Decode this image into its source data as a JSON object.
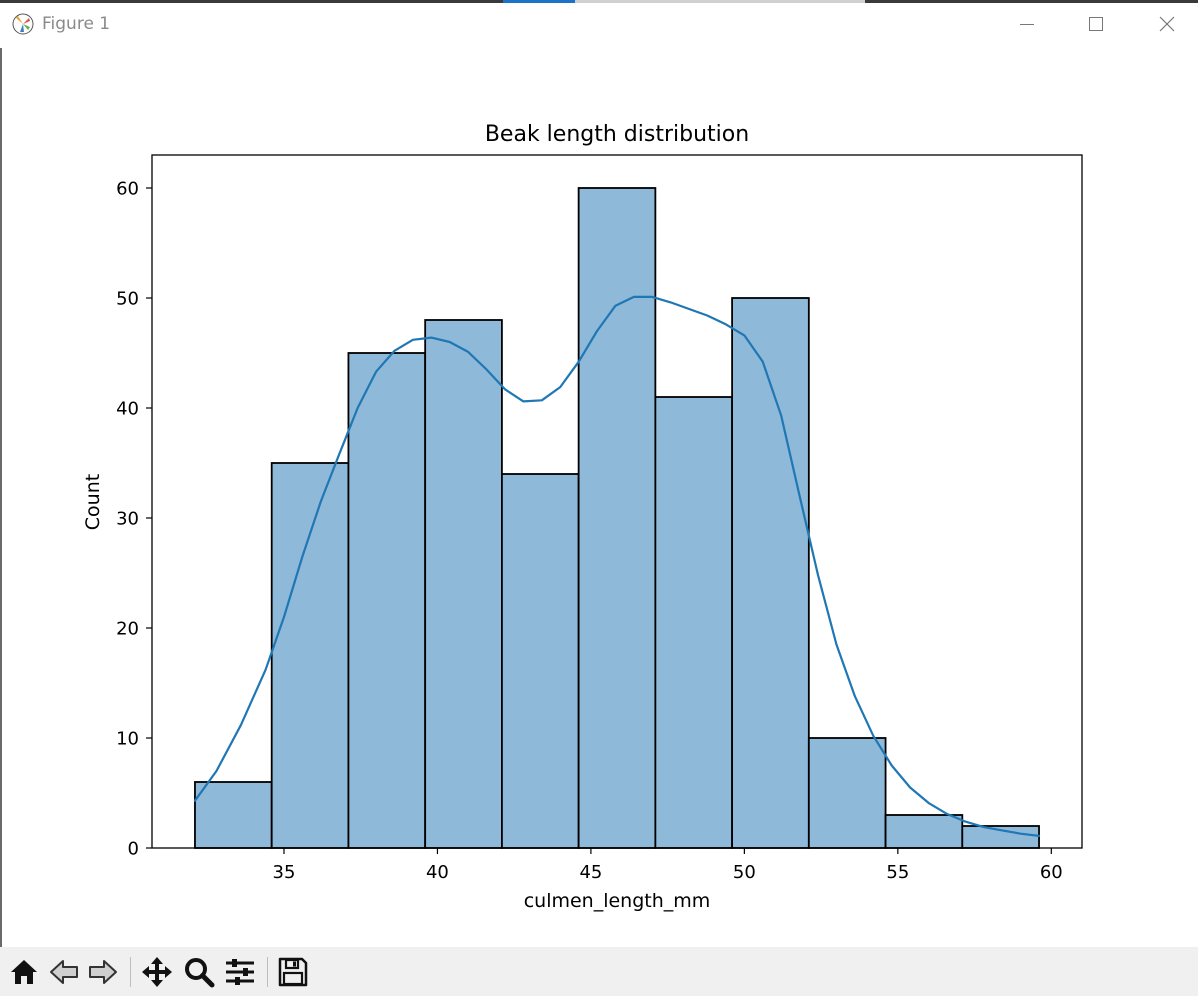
{
  "window": {
    "title": "Figure 1"
  },
  "toolbar": {
    "buttons": [
      {
        "name": "home-button",
        "icon": "home-icon"
      },
      {
        "name": "back-button",
        "icon": "back-arrow-icon"
      },
      {
        "name": "forward-button",
        "icon": "forward-arrow-icon"
      },
      {
        "name": "pan-button",
        "icon": "move-icon"
      },
      {
        "name": "zoom-button",
        "icon": "magnifier-icon"
      },
      {
        "name": "configure-subplots-button",
        "icon": "sliders-icon"
      },
      {
        "name": "save-button",
        "icon": "floppy-disk-icon"
      }
    ]
  },
  "colors": {
    "bar_fill": "#8fb9d9",
    "bar_edge": "#000000",
    "kde_line": "#1f77b4"
  },
  "chart_data": {
    "type": "bar",
    "title": "Beak length distribution",
    "xlabel": "culmen_length_mm",
    "ylabel": "Count",
    "xlim": [
      30.7,
      61
    ],
    "ylim": [
      0,
      63
    ],
    "x_ticks": [
      35,
      40,
      45,
      50,
      55,
      60
    ],
    "x_tick_labels": [
      "35",
      "40",
      "45",
      "50",
      "55",
      "60"
    ],
    "y_ticks": [
      0,
      10,
      20,
      30,
      40,
      50,
      60
    ],
    "y_tick_labels": [
      "0",
      "10",
      "20",
      "30",
      "40",
      "50",
      "60"
    ],
    "bin_edges": [
      32.1,
      34.6,
      37.1,
      39.6,
      42.1,
      44.6,
      47.1,
      49.6,
      52.1,
      54.6,
      57.1,
      59.6
    ],
    "values": [
      6,
      35,
      45,
      48,
      34,
      60,
      41,
      50,
      10,
      3,
      2
    ],
    "kde": {
      "x": [
        32.1,
        32.8,
        33.6,
        34.4,
        35.0,
        35.6,
        36.2,
        36.8,
        37.4,
        38.0,
        38.6,
        39.2,
        39.8,
        40.4,
        41.0,
        41.6,
        42.2,
        42.8,
        43.4,
        44.0,
        44.6,
        45.2,
        45.8,
        46.4,
        47.0,
        47.6,
        48.2,
        48.8,
        49.4,
        50.0,
        50.6,
        51.2,
        51.8,
        52.4,
        53.0,
        53.6,
        54.2,
        54.8,
        55.4,
        56.0,
        56.6,
        57.2,
        57.8,
        58.4,
        59.0,
        59.6
      ],
      "y": [
        4.3,
        7.0,
        11.2,
        16.2,
        21.0,
        26.5,
        31.5,
        35.8,
        40.0,
        43.3,
        45.2,
        46.2,
        46.4,
        46.0,
        45.1,
        43.5,
        41.7,
        40.6,
        40.7,
        41.9,
        44.2,
        47.0,
        49.3,
        50.1,
        50.1,
        49.6,
        49.0,
        48.4,
        47.6,
        46.6,
        44.2,
        39.3,
        32.0,
        24.8,
        18.5,
        13.8,
        10.2,
        7.5,
        5.5,
        4.1,
        3.1,
        2.4,
        1.9,
        1.6,
        1.3,
        1.1
      ]
    }
  }
}
